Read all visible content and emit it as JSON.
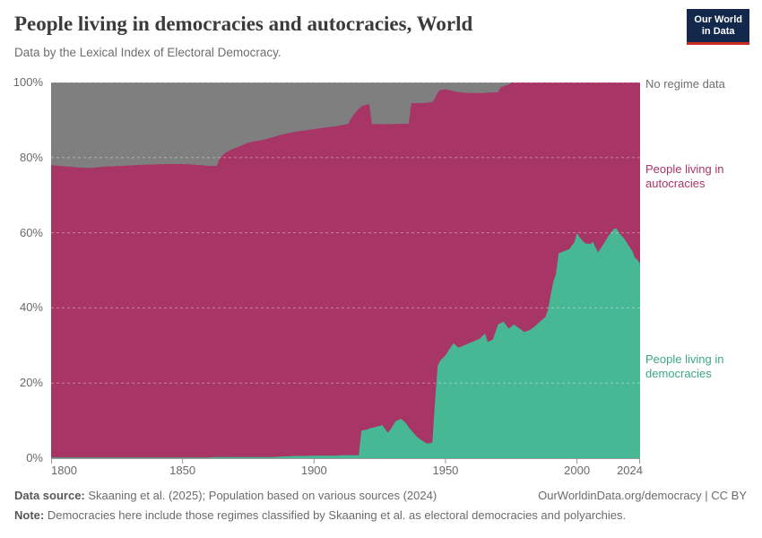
{
  "header": {
    "title": "People living in democracies and autocracies, World",
    "subtitle": "Data by the Lexical Index of Electoral Democracy.",
    "logo": {
      "line1": "Our World",
      "line2": "in Data"
    }
  },
  "chart_data": {
    "type": "area",
    "stacked": true,
    "grid": "dashed-horizontal",
    "legend_position": "right-edge-labels",
    "x_domain": [
      1800,
      2024
    ],
    "y_domain": [
      0,
      100
    ],
    "x_tick_years": [
      1800,
      1850,
      1900,
      1950,
      2000,
      2024
    ],
    "x_tick_labels": [
      "1800",
      "1850",
      "1900",
      "1950",
      "2000",
      "2024"
    ],
    "y_tick_values": [
      0,
      20,
      40,
      60,
      80,
      100
    ],
    "y_tick_labels": [
      "0%",
      "20%",
      "40%",
      "60%",
      "80%",
      "100%"
    ],
    "units": "% of world population",
    "years": [
      1800,
      1805,
      1810,
      1815,
      1820,
      1827,
      1835,
      1845,
      1850,
      1855,
      1860,
      1863,
      1864,
      1866,
      1869,
      1872,
      1875,
      1878,
      1881,
      1884,
      1887,
      1890,
      1893,
      1896,
      1900,
      1904,
      1908,
      1911,
      1913,
      1914,
      1915,
      1916,
      1917,
      1918,
      1919,
      1920,
      1921,
      1922,
      1924,
      1926,
      1927,
      1928,
      1929,
      1931,
      1933,
      1935,
      1936,
      1937,
      1939,
      1941,
      1943,
      1945,
      1946,
      1947,
      1948,
      1950,
      1951,
      1953,
      1955,
      1957,
      1959,
      1961,
      1963,
      1965,
      1966,
      1968,
      1970,
      1971,
      1972,
      1974,
      1975,
      1976,
      1978,
      1980,
      1982,
      1984,
      1986,
      1988,
      1989,
      1990,
      1991,
      1992,
      1993,
      1995,
      1997,
      1999,
      2000,
      2001,
      2003,
      2005,
      2006,
      2008,
      2010,
      2012,
      2014,
      2015,
      2016,
      2018,
      2020,
      2021,
      2022,
      2023,
      2024
    ],
    "series": [
      {
        "name": "People living in democracies",
        "color": "#48b794",
        "label_color": "#3ca687",
        "values": [
          0.2,
          0.2,
          0.2,
          0.2,
          0.2,
          0.2,
          0.2,
          0.2,
          0.2,
          0.2,
          0.2,
          0.3,
          0.3,
          0.3,
          0.3,
          0.3,
          0.3,
          0.3,
          0.3,
          0.3,
          0.4,
          0.5,
          0.6,
          0.6,
          0.7,
          0.7,
          0.7,
          0.8,
          0.8,
          0.8,
          0.8,
          0.8,
          0.8,
          7.3,
          7.5,
          7.6,
          7.9,
          8.1,
          8.4,
          8.8,
          7.8,
          6.8,
          7.6,
          9.8,
          10.5,
          9.3,
          8.2,
          7.4,
          5.8,
          4.7,
          3.9,
          4.2,
          15.0,
          24.5,
          26.0,
          27.4,
          28.5,
          30.6,
          29.4,
          30.0,
          30.6,
          31.2,
          31.8,
          33.2,
          30.9,
          31.6,
          35.6,
          36.0,
          36.4,
          34.5,
          35.0,
          35.6,
          34.6,
          33.6,
          34.1,
          35.1,
          36.4,
          37.6,
          39.6,
          43.5,
          47.0,
          49.0,
          54.5,
          55.1,
          55.6,
          57.5,
          59.9,
          58.8,
          57.2,
          57.0,
          57.6,
          54.8,
          56.9,
          59.2,
          61.0,
          61.2,
          60.0,
          58.4,
          56.2,
          55.2,
          53.4,
          52.8,
          51.8
        ]
      },
      {
        "name": "People living in autocracies",
        "color": "#a73565",
        "label_color": "#a73565",
        "values": [
          77.8,
          77.5,
          77.2,
          77.0,
          77.4,
          77.6,
          77.9,
          78.1,
          78.1,
          77.9,
          77.6,
          77.5,
          79.3,
          80.9,
          82.0,
          82.8,
          83.7,
          84.1,
          84.5,
          85.1,
          85.6,
          86.0,
          86.3,
          86.6,
          86.9,
          87.3,
          87.6,
          87.9,
          88.2,
          89.5,
          90.6,
          91.4,
          92.2,
          86.3,
          86.4,
          86.5,
          86.3,
          80.9,
          80.5,
          80.1,
          81.1,
          82.1,
          81.3,
          79.2,
          78.5,
          79.7,
          80.9,
          87.1,
          88.7,
          89.8,
          90.7,
          90.6,
          80.8,
          72.8,
          72.0,
          70.8,
          69.5,
          67.1,
          68.0,
          67.3,
          66.6,
          66.0,
          65.4,
          64.0,
          66.4,
          65.7,
          61.8,
          62.7,
          62.6,
          64.9,
          65.0,
          64.4,
          65.4,
          66.4,
          65.9,
          64.9,
          63.6,
          62.4,
          60.4,
          56.5,
          53.0,
          51.0,
          45.5,
          44.9,
          44.4,
          42.5,
          40.1,
          41.2,
          42.8,
          43.0,
          42.4,
          45.2,
          43.1,
          40.8,
          39.0,
          38.8,
          40.0,
          41.6,
          43.8,
          44.8,
          46.6,
          47.2,
          48.2
        ]
      },
      {
        "name": "No regime data",
        "color": "#7f7f7f",
        "label_color": "#6f6f6f",
        "values": [
          22.0,
          22.3,
          22.6,
          22.8,
          22.4,
          22.2,
          21.9,
          21.7,
          21.7,
          21.9,
          22.2,
          22.2,
          20.4,
          18.8,
          17.7,
          16.9,
          16.0,
          15.6,
          15.2,
          14.6,
          14.0,
          13.5,
          13.1,
          12.8,
          12.4,
          12.0,
          11.7,
          11.3,
          11.0,
          9.7,
          8.6,
          7.8,
          7.0,
          6.4,
          6.1,
          5.9,
          5.8,
          11.0,
          11.1,
          11.1,
          11.1,
          11.1,
          11.1,
          11.0,
          11.0,
          11.0,
          10.9,
          5.5,
          5.5,
          5.5,
          5.4,
          5.2,
          4.2,
          2.7,
          2.0,
          1.8,
          2.0,
          2.3,
          2.6,
          2.7,
          2.8,
          2.8,
          2.8,
          2.8,
          2.7,
          2.7,
          2.6,
          1.3,
          1.0,
          0.6,
          0,
          0,
          0,
          0,
          0,
          0,
          0,
          0,
          0,
          0,
          0,
          0,
          0,
          0,
          0,
          0,
          0,
          0,
          0,
          0,
          0,
          0,
          0,
          0,
          0,
          0,
          0,
          0,
          0,
          0,
          0,
          0,
          0
        ]
      }
    ]
  },
  "footer": {
    "data_source_label": "Data source:",
    "data_source_text": " Skaaning et al. (2025); Population based on various sources (2024)",
    "link": "OurWorldinData.org/democracy | CC BY",
    "note_label": "Note:",
    "note_text": " Democracies here include those regimes classified by Skaaning et al. as electoral democracies and polyarchies."
  }
}
